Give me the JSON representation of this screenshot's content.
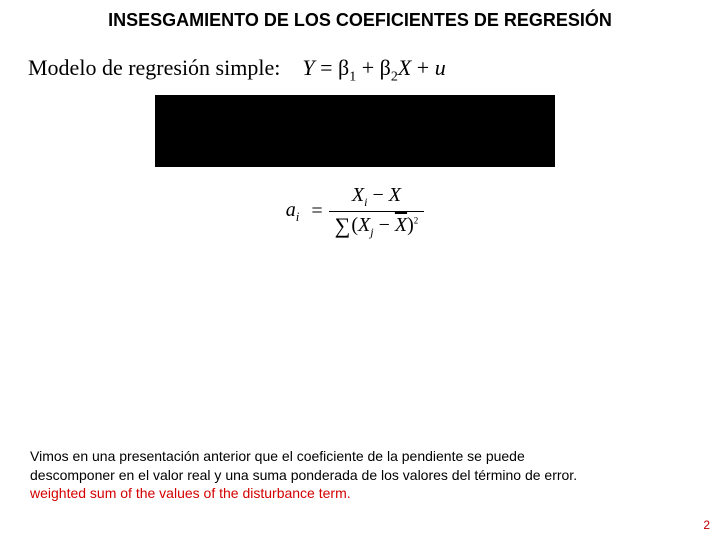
{
  "title": "INSESGAMIENTO DE LOS COEFICIENTES DE REGRESIÓN",
  "model": {
    "label": "Modelo de regresión simple:",
    "Y": "Y",
    "eq": "=",
    "b": "β",
    "s1": "1",
    "plus": "+",
    "s2": "2",
    "X": "X",
    "u": "u"
  },
  "formula": {
    "a": "a",
    "i": "i",
    "eq": "=",
    "Xi": "X",
    "isub": "i",
    "minus": "−",
    "Xbar_num": "X",
    "sigma": "∑",
    "open": "(",
    "Xj": "X",
    "jsub": "j",
    "Xbar_den": "X",
    "close": ")",
    "tail": "2",
    "after": ""
  },
  "footer": {
    "line1": "Vimos en una presentación anterior que el coeficiente de la pendiente se puede",
    "line2": "descomponer en el valor real y una suma ponderada de los valores del término de error.",
    "line3": "weighted sum of the values of the disturbance term."
  },
  "page": "2",
  "colors": {
    "text": "#000000",
    "accent": "#d40000",
    "page": "#c00000",
    "bg": "#ffffff",
    "box": "#000000"
  }
}
